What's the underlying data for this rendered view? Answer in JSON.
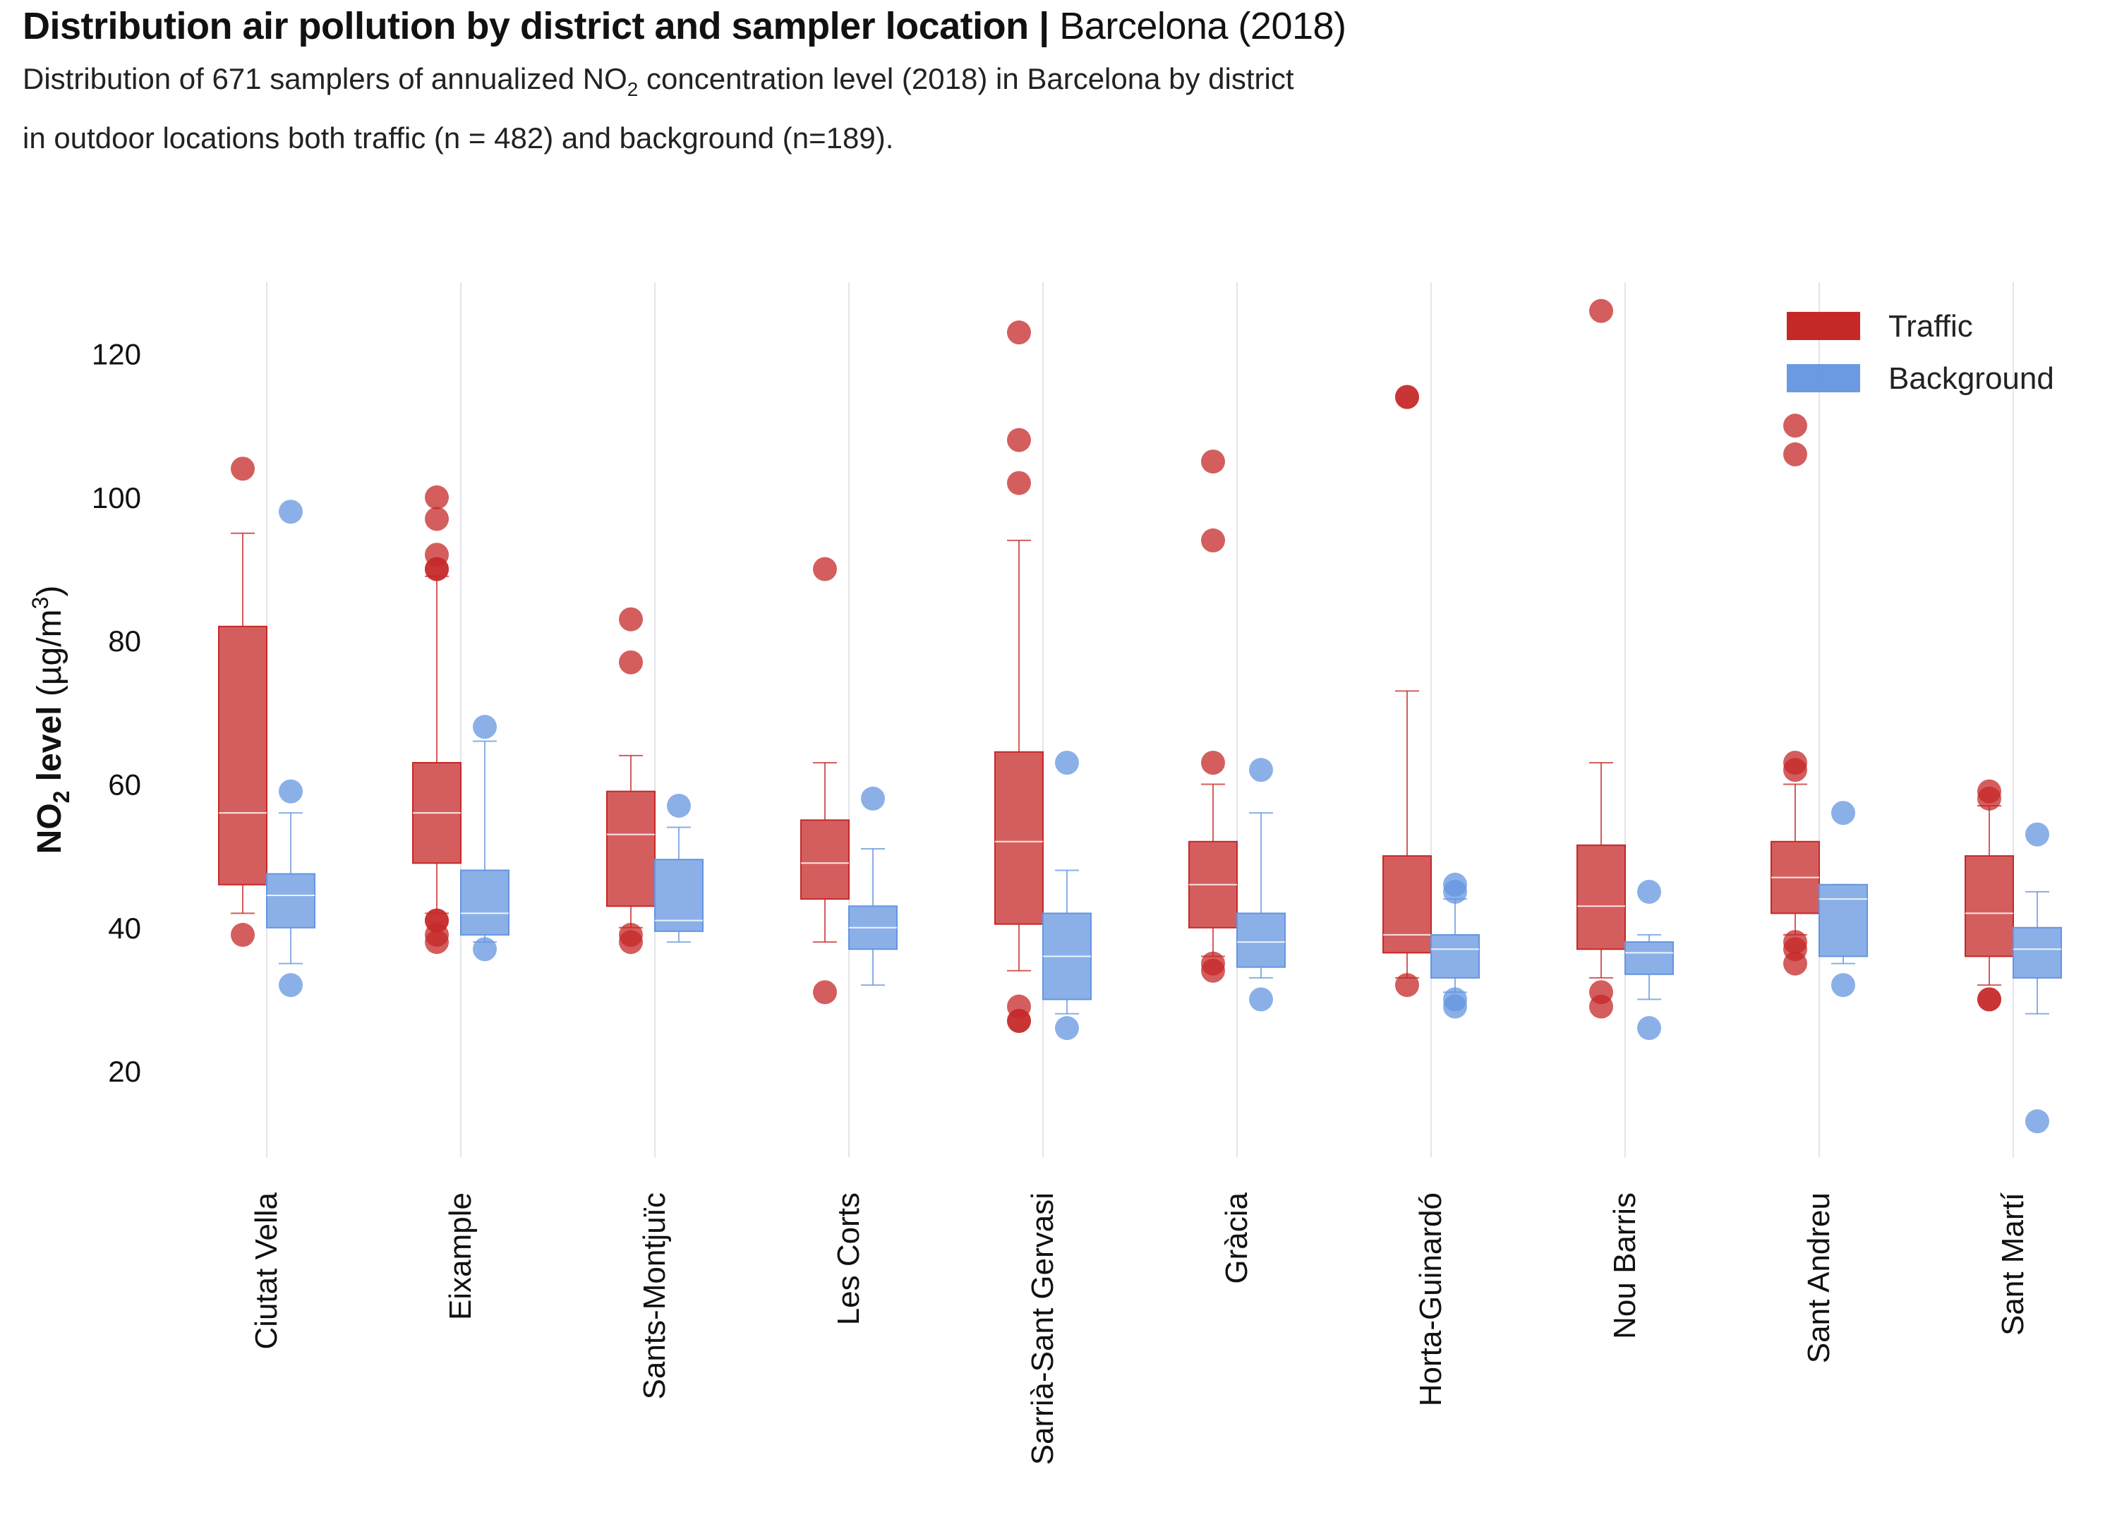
{
  "header": {
    "title_bold": "Distribution air pollution by district and sampler location",
    "title_sep": "|",
    "title_light": "Barcelona (2018)",
    "subtitle_line1_pre": "Distribution of 671 samplers of annualized NO",
    "subtitle_line1_sub": "2",
    "subtitle_line1_post": " concentration level (2018) in Barcelona by district",
    "subtitle_line2": "in outdoor locations both traffic (n = 482) and background (n=189)."
  },
  "colors": {
    "traffic": "#c62828",
    "background": "#6495e0",
    "grid": "#e4e4ea"
  },
  "chart_data": {
    "type": "box",
    "title": "Distribution air pollution by district and sampler location | Barcelona (2018)",
    "ylabel_bold": "NO",
    "ylabel_sub": "2",
    "ylabel_bold2": " level",
    "ylabel_unit": " (µg/m",
    "ylabel_sup": "3",
    "ylabel_close": ")",
    "ylim": [
      8,
      130
    ],
    "yticks": [
      20,
      40,
      60,
      80,
      100,
      120
    ],
    "legend_position": "top-right",
    "categories": [
      "Ciutat Vella",
      "Eixample",
      "Sants-Montjuïc",
      "Les Corts",
      "Sarrià-Sant Gervasi",
      "Gràcia",
      "Horta-Guinardó",
      "Nou Barris",
      "Sant Andreu",
      "Sant Martí"
    ],
    "series": [
      {
        "name": "Traffic",
        "boxes": [
          {
            "whislo": 42,
            "q1": 46,
            "med": 56,
            "q3": 82,
            "whishi": 95,
            "fliers": [
              104,
              39
            ]
          },
          {
            "whislo": 42,
            "q1": 49,
            "med": 56,
            "q3": 63,
            "whishi": 89,
            "fliers": [
              100,
              97,
              92,
              90,
              90,
              41,
              41,
              39,
              38
            ]
          },
          {
            "whislo": 40,
            "q1": 43,
            "med": 53,
            "q3": 59,
            "whishi": 64,
            "fliers": [
              83,
              77,
              39,
              38
            ]
          },
          {
            "whislo": 38,
            "q1": 44,
            "med": 49,
            "q3": 55,
            "whishi": 63,
            "fliers": [
              90,
              31
            ]
          },
          {
            "whislo": 34,
            "q1": 40.5,
            "med": 52,
            "q3": 64.5,
            "whishi": 94,
            "fliers": [
              123,
              108,
              102,
              29,
              27,
              27
            ]
          },
          {
            "whislo": 36,
            "q1": 40,
            "med": 46,
            "q3": 52,
            "whishi": 60,
            "fliers": [
              105,
              94,
              63,
              35,
              34
            ]
          },
          {
            "whislo": 33,
            "q1": 36.5,
            "med": 39,
            "q3": 50,
            "whishi": 73,
            "fliers": [
              114,
              114,
              32
            ]
          },
          {
            "whislo": 33,
            "q1": 37,
            "med": 43,
            "q3": 51.5,
            "whishi": 63,
            "fliers": [
              126,
              31,
              29
            ]
          },
          {
            "whislo": 39,
            "q1": 42,
            "med": 47,
            "q3": 52,
            "whishi": 60,
            "fliers": [
              110,
              106,
              63,
              62,
              38,
              37,
              35
            ]
          },
          {
            "whislo": 32,
            "q1": 36,
            "med": 42,
            "q3": 50,
            "whishi": 57,
            "fliers": [
              59,
              58,
              30,
              30
            ]
          }
        ]
      },
      {
        "name": "Background",
        "boxes": [
          {
            "whislo": 35,
            "q1": 40,
            "med": 44.5,
            "q3": 47.5,
            "whishi": 56,
            "fliers": [
              98,
              59,
              32
            ]
          },
          {
            "whislo": 38,
            "q1": 39,
            "med": 42,
            "q3": 48,
            "whishi": 66,
            "fliers": [
              68,
              37
            ]
          },
          {
            "whislo": 38,
            "q1": 39.5,
            "med": 41,
            "q3": 49.5,
            "whishi": 54,
            "fliers": [
              57
            ]
          },
          {
            "whislo": 32,
            "q1": 37,
            "med": 40,
            "q3": 43,
            "whishi": 51,
            "fliers": [
              58
            ]
          },
          {
            "whislo": 28,
            "q1": 30,
            "med": 36,
            "q3": 42,
            "whishi": 48,
            "fliers": [
              63,
              26
            ]
          },
          {
            "whislo": 33,
            "q1": 34.5,
            "med": 38,
            "q3": 42,
            "whishi": 56,
            "fliers": [
              62,
              30
            ]
          },
          {
            "whislo": 31,
            "q1": 33,
            "med": 37,
            "q3": 39,
            "whishi": 44,
            "fliers": [
              46,
              45,
              30,
              29
            ]
          },
          {
            "whislo": 30,
            "q1": 33.5,
            "med": 36.5,
            "q3": 38,
            "whishi": 39,
            "fliers": [
              45,
              26
            ]
          },
          {
            "whislo": 35,
            "q1": 36,
            "med": 44,
            "q3": 46,
            "whishi": 46,
            "fliers": [
              56,
              32
            ]
          },
          {
            "whislo": 28,
            "q1": 33,
            "med": 37,
            "q3": 40,
            "whishi": 45,
            "fliers": [
              53,
              13
            ]
          }
        ]
      }
    ]
  }
}
